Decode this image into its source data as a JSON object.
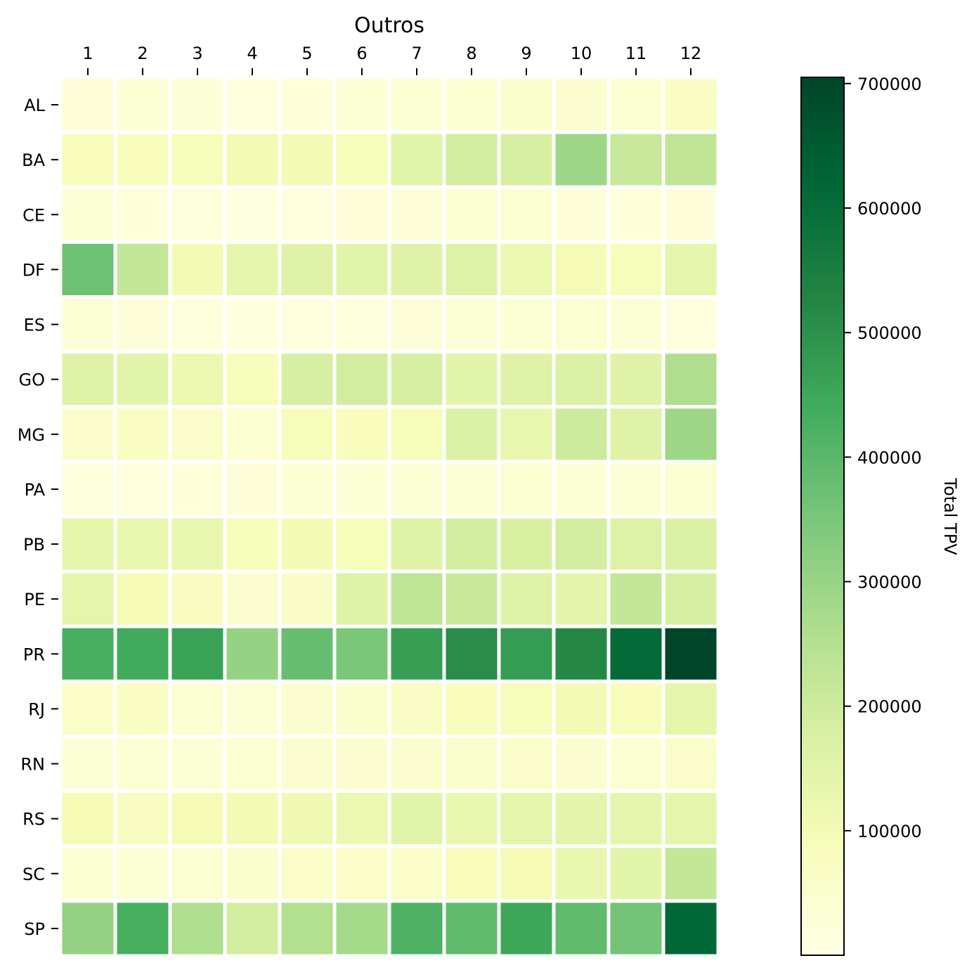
{
  "chart_data": {
    "type": "heatmap",
    "title": "Outros",
    "x_categories": [
      "1",
      "2",
      "3",
      "4",
      "5",
      "6",
      "7",
      "8",
      "9",
      "10",
      "11",
      "12"
    ],
    "y_categories": [
      "AL",
      "BA",
      "CE",
      "DF",
      "ES",
      "GO",
      "MG",
      "PA",
      "PB",
      "PE",
      "PR",
      "RJ",
      "RN",
      "RS",
      "SC",
      "SP"
    ],
    "values": [
      [
        25000,
        30000,
        28000,
        15000,
        22000,
        30000,
        35000,
        40000,
        50000,
        45000,
        40000,
        70000
      ],
      [
        85000,
        80000,
        90000,
        100000,
        100000,
        90000,
        150000,
        190000,
        180000,
        290000,
        210000,
        225000
      ],
      [
        30000,
        22000,
        18000,
        10000,
        15000,
        25000,
        25000,
        40000,
        40000,
        25000,
        22000,
        25000
      ],
      [
        370000,
        220000,
        100000,
        140000,
        160000,
        150000,
        160000,
        165000,
        120000,
        95000,
        90000,
        140000
      ],
      [
        30000,
        25000,
        20000,
        12000,
        15000,
        20000,
        25000,
        30000,
        35000,
        40000,
        30000,
        15000
      ],
      [
        160000,
        150000,
        120000,
        90000,
        180000,
        190000,
        180000,
        150000,
        160000,
        170000,
        160000,
        260000
      ],
      [
        55000,
        70000,
        55000,
        40000,
        90000,
        80000,
        90000,
        170000,
        130000,
        200000,
        160000,
        290000
      ],
      [
        20000,
        15000,
        22000,
        25000,
        30000,
        30000,
        30000,
        35000,
        40000,
        35000,
        30000,
        40000
      ],
      [
        140000,
        125000,
        130000,
        90000,
        100000,
        90000,
        160000,
        190000,
        175000,
        190000,
        165000,
        170000
      ],
      [
        140000,
        95000,
        75000,
        45000,
        65000,
        160000,
        230000,
        210000,
        160000,
        145000,
        220000,
        180000
      ],
      [
        430000,
        440000,
        460000,
        305000,
        380000,
        350000,
        470000,
        510000,
        475000,
        520000,
        610000,
        705000
      ],
      [
        60000,
        70000,
        40000,
        35000,
        45000,
        50000,
        65000,
        80000,
        90000,
        100000,
        85000,
        140000
      ],
      [
        30000,
        35000,
        30000,
        40000,
        45000,
        45000,
        45000,
        50000,
        55000,
        45000,
        40000,
        55000
      ],
      [
        95000,
        75000,
        95000,
        100000,
        110000,
        120000,
        150000,
        125000,
        140000,
        145000,
        140000,
        140000
      ],
      [
        40000,
        35000,
        40000,
        50000,
        60000,
        60000,
        60000,
        85000,
        95000,
        130000,
        150000,
        220000
      ],
      [
        305000,
        430000,
        260000,
        190000,
        255000,
        280000,
        420000,
        390000,
        450000,
        390000,
        360000,
        620000
      ]
    ],
    "colorbar": {
      "label": "Total TPV",
      "min": 0,
      "max": 705000,
      "ticks": [
        100000,
        200000,
        300000,
        400000,
        500000,
        600000,
        700000
      ],
      "tick_labels": [
        "100000",
        "200000",
        "300000",
        "400000",
        "500000",
        "600000",
        "700000"
      ]
    },
    "colormap": "YlGn",
    "colormap_stops": [
      "#ffffe5",
      "#f7fcb9",
      "#d9f0a3",
      "#addd8e",
      "#78c679",
      "#41ab5d",
      "#238443",
      "#006837",
      "#004529"
    ],
    "grid": false,
    "legend": "right colorbar"
  }
}
